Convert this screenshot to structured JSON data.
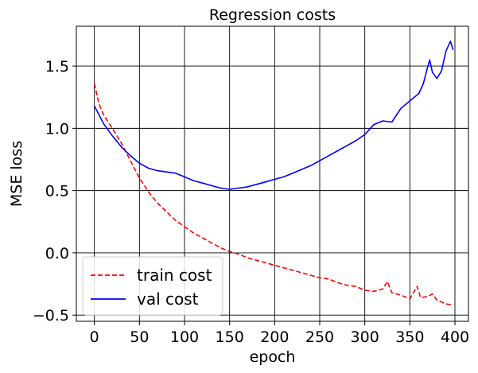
{
  "chart_data": {
    "type": "line",
    "title": "Regression costs",
    "xlabel": "epoch",
    "ylabel": "MSE loss",
    "xlim": [
      -20,
      415
    ],
    "ylim": [
      -0.55,
      1.82
    ],
    "xticks": [
      0,
      50,
      100,
      150,
      200,
      250,
      300,
      350,
      400
    ],
    "yticks": [
      -0.5,
      0.0,
      0.5,
      1.0,
      1.5
    ],
    "ytick_labels": [
      "−0.5",
      "0.0",
      "0.5",
      "1.0",
      "1.5"
    ],
    "grid": true,
    "legend_position": "lower-left",
    "series": [
      {
        "name": "train cost",
        "color": "#ff0000",
        "style": "dashed",
        "points": [
          [
            0,
            1.36
          ],
          [
            5,
            1.2
          ],
          [
            10,
            1.11
          ],
          [
            20,
            1.0
          ],
          [
            30,
            0.88
          ],
          [
            40,
            0.74
          ],
          [
            50,
            0.6
          ],
          [
            60,
            0.49
          ],
          [
            70,
            0.4
          ],
          [
            80,
            0.33
          ],
          [
            90,
            0.26
          ],
          [
            100,
            0.21
          ],
          [
            110,
            0.16
          ],
          [
            120,
            0.12
          ],
          [
            130,
            0.08
          ],
          [
            140,
            0.04
          ],
          [
            150,
            0.01
          ],
          [
            160,
            -0.01
          ],
          [
            170,
            -0.04
          ],
          [
            180,
            -0.06
          ],
          [
            190,
            -0.08
          ],
          [
            200,
            -0.1
          ],
          [
            210,
            -0.12
          ],
          [
            220,
            -0.14
          ],
          [
            230,
            -0.16
          ],
          [
            240,
            -0.18
          ],
          [
            250,
            -0.2
          ],
          [
            260,
            -0.21
          ],
          [
            270,
            -0.24
          ],
          [
            280,
            -0.26
          ],
          [
            290,
            -0.27
          ],
          [
            300,
            -0.3
          ],
          [
            310,
            -0.31
          ],
          [
            320,
            -0.29
          ],
          [
            325,
            -0.23
          ],
          [
            330,
            -0.32
          ],
          [
            340,
            -0.34
          ],
          [
            350,
            -0.37
          ],
          [
            358,
            -0.27
          ],
          [
            362,
            -0.36
          ],
          [
            370,
            -0.35
          ],
          [
            375,
            -0.33
          ],
          [
            380,
            -0.38
          ],
          [
            390,
            -0.41
          ],
          [
            398,
            -0.42
          ]
        ]
      },
      {
        "name": "val cost",
        "color": "#0000ff",
        "style": "solid",
        "points": [
          [
            0,
            1.18
          ],
          [
            10,
            1.04
          ],
          [
            20,
            0.94
          ],
          [
            30,
            0.85
          ],
          [
            40,
            0.78
          ],
          [
            50,
            0.72
          ],
          [
            60,
            0.68
          ],
          [
            70,
            0.66
          ],
          [
            80,
            0.65
          ],
          [
            90,
            0.64
          ],
          [
            100,
            0.61
          ],
          [
            110,
            0.58
          ],
          [
            120,
            0.56
          ],
          [
            130,
            0.54
          ],
          [
            140,
            0.52
          ],
          [
            150,
            0.51
          ],
          [
            160,
            0.52
          ],
          [
            170,
            0.53
          ],
          [
            180,
            0.55
          ],
          [
            190,
            0.57
          ],
          [
            200,
            0.59
          ],
          [
            210,
            0.61
          ],
          [
            220,
            0.64
          ],
          [
            230,
            0.67
          ],
          [
            240,
            0.7
          ],
          [
            250,
            0.74
          ],
          [
            260,
            0.78
          ],
          [
            270,
            0.82
          ],
          [
            280,
            0.86
          ],
          [
            290,
            0.9
          ],
          [
            300,
            0.95
          ],
          [
            310,
            1.03
          ],
          [
            320,
            1.06
          ],
          [
            330,
            1.05
          ],
          [
            340,
            1.16
          ],
          [
            350,
            1.22
          ],
          [
            360,
            1.28
          ],
          [
            365,
            1.36
          ],
          [
            370,
            1.5
          ],
          [
            372,
            1.55
          ],
          [
            375,
            1.45
          ],
          [
            380,
            1.4
          ],
          [
            385,
            1.46
          ],
          [
            390,
            1.62
          ],
          [
            395,
            1.7
          ],
          [
            398,
            1.63
          ]
        ]
      }
    ]
  }
}
